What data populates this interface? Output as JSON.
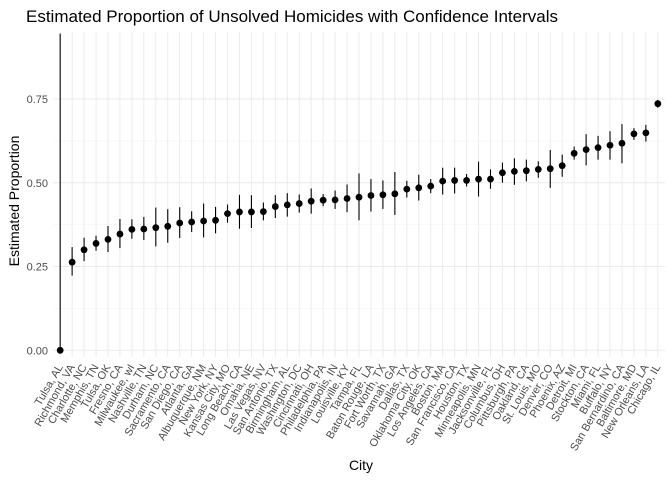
{
  "chart_data": {
    "type": "scatter",
    "title": "Estimated Proportion of Unsolved Homicides with Confidence Intervals",
    "xlabel": "City",
    "ylabel": "Estimated Proportion",
    "ylim": [
      -0.02,
      0.95
    ],
    "yticks": [
      0.0,
      0.25,
      0.5,
      0.75
    ],
    "ytick_labels": [
      "0.00",
      "0.25",
      "0.50",
      "0.75"
    ],
    "grid": true,
    "points": [
      {
        "city": "Tulsa, AL",
        "estimate": 0.0,
        "lower": 0.0,
        "upper": 0.945
      },
      {
        "city": "Richmond, VA",
        "estimate": 0.263,
        "lower": 0.223,
        "upper": 0.308
      },
      {
        "city": "Charlotte, NC",
        "estimate": 0.3,
        "lower": 0.266,
        "upper": 0.336
      },
      {
        "city": "Memphis, TN",
        "estimate": 0.319,
        "lower": 0.297,
        "upper": 0.342
      },
      {
        "city": "Tulsa, OK",
        "estimate": 0.331,
        "lower": 0.293,
        "upper": 0.371
      },
      {
        "city": "Fresno, CA",
        "estimate": 0.347,
        "lower": 0.305,
        "upper": 0.392
      },
      {
        "city": "Milwaukee, wI",
        "estimate": 0.361,
        "lower": 0.333,
        "upper": 0.391
      },
      {
        "city": "Nashville, TN",
        "estimate": 0.362,
        "lower": 0.329,
        "upper": 0.398
      },
      {
        "city": "Durham, NC",
        "estimate": 0.366,
        "lower": 0.31,
        "upper": 0.426
      },
      {
        "city": "Sacramento, CA",
        "estimate": 0.37,
        "lower": 0.321,
        "upper": 0.421
      },
      {
        "city": "San Diego, CA",
        "estimate": 0.38,
        "lower": 0.335,
        "upper": 0.427
      },
      {
        "city": "Atlanta, GA",
        "estimate": 0.383,
        "lower": 0.353,
        "upper": 0.415
      },
      {
        "city": "Albuquerque, NM",
        "estimate": 0.386,
        "lower": 0.337,
        "upper": 0.438
      },
      {
        "city": "New York, NY",
        "estimate": 0.388,
        "lower": 0.349,
        "upper": 0.428
      },
      {
        "city": "Kansas City, MO",
        "estimate": 0.408,
        "lower": 0.381,
        "upper": 0.435
      },
      {
        "city": "Long Beach, CA",
        "estimate": 0.413,
        "lower": 0.363,
        "upper": 0.464
      },
      {
        "city": "Omaha, NE",
        "estimate": 0.413,
        "lower": 0.365,
        "upper": 0.463
      },
      {
        "city": "Las Vegas, NV",
        "estimate": 0.414,
        "lower": 0.388,
        "upper": 0.441
      },
      {
        "city": "San Antonio, TX",
        "estimate": 0.429,
        "lower": 0.395,
        "upper": 0.463
      },
      {
        "city": "Birmingham, AL",
        "estimate": 0.434,
        "lower": 0.399,
        "upper": 0.469
      },
      {
        "city": "Washington, DC",
        "estimate": 0.438,
        "lower": 0.411,
        "upper": 0.465
      },
      {
        "city": "Cincinnati, OH",
        "estimate": 0.445,
        "lower": 0.408,
        "upper": 0.483
      },
      {
        "city": "Philadelphia, PA",
        "estimate": 0.448,
        "lower": 0.43,
        "upper": 0.466
      },
      {
        "city": "Indianapolis, IN",
        "estimate": 0.449,
        "lower": 0.422,
        "upper": 0.477
      },
      {
        "city": "Louisville, KY",
        "estimate": 0.453,
        "lower": 0.412,
        "upper": 0.495
      },
      {
        "city": "Tampa, FL",
        "estimate": 0.457,
        "lower": 0.388,
        "upper": 0.528
      },
      {
        "city": "Baton Rouge, LA",
        "estimate": 0.462,
        "lower": 0.414,
        "upper": 0.511
      },
      {
        "city": "Fort Worth, TX",
        "estimate": 0.464,
        "lower": 0.422,
        "upper": 0.507
      },
      {
        "city": "Savannah, GA",
        "estimate": 0.467,
        "lower": 0.404,
        "upper": 0.532
      },
      {
        "city": "Dallas, TX",
        "estimate": 0.481,
        "lower": 0.456,
        "upper": 0.506
      },
      {
        "city": "Oklahoma City, OK",
        "estimate": 0.485,
        "lower": 0.447,
        "upper": 0.524
      },
      {
        "city": "Los Angeles, CA",
        "estimate": 0.49,
        "lower": 0.469,
        "upper": 0.511
      },
      {
        "city": "Boston, MA",
        "estimate": 0.505,
        "lower": 0.465,
        "upper": 0.545
      },
      {
        "city": "San Francisco, CA",
        "estimate": 0.507,
        "lower": 0.468,
        "upper": 0.545
      },
      {
        "city": "Houston, TX",
        "estimate": 0.507,
        "lower": 0.489,
        "upper": 0.526
      },
      {
        "city": "Minneapolis, MN",
        "estimate": 0.511,
        "lower": 0.459,
        "upper": 0.563
      },
      {
        "city": "Jacksonville, FL",
        "estimate": 0.511,
        "lower": 0.482,
        "upper": 0.54
      },
      {
        "city": "Columbus, OH",
        "estimate": 0.53,
        "lower": 0.5,
        "upper": 0.56
      },
      {
        "city": "Pittsburgh, PA",
        "estimate": 0.534,
        "lower": 0.494,
        "upper": 0.573
      },
      {
        "city": "Oakland, CA",
        "estimate": 0.536,
        "lower": 0.504,
        "upper": 0.569
      },
      {
        "city": "St. Louis, MO",
        "estimate": 0.54,
        "lower": 0.515,
        "upper": 0.564
      },
      {
        "city": "Denver, CO",
        "estimate": 0.542,
        "lower": 0.485,
        "upper": 0.598
      },
      {
        "city": "Phoenix, AZ",
        "estimate": 0.551,
        "lower": 0.518,
        "upper": 0.584
      },
      {
        "city": "Detroit, MI",
        "estimate": 0.588,
        "lower": 0.569,
        "upper": 0.608
      },
      {
        "city": "Stockton, CA",
        "estimate": 0.599,
        "lower": 0.552,
        "upper": 0.645
      },
      {
        "city": "Miami, FL",
        "estimate": 0.605,
        "lower": 0.569,
        "upper": 0.64
      },
      {
        "city": "Buffalo, NY",
        "estimate": 0.612,
        "lower": 0.569,
        "upper": 0.654
      },
      {
        "city": "San Bernardino, CA",
        "estimate": 0.618,
        "lower": 0.558,
        "upper": 0.675
      },
      {
        "city": "Baltimore, MD",
        "estimate": 0.646,
        "lower": 0.628,
        "upper": 0.663
      },
      {
        "city": "New Orleans, LA",
        "estimate": 0.649,
        "lower": 0.623,
        "upper": 0.673
      },
      {
        "city": "Chicago, IL",
        "estimate": 0.736,
        "lower": 0.724,
        "upper": 0.747
      }
    ]
  }
}
